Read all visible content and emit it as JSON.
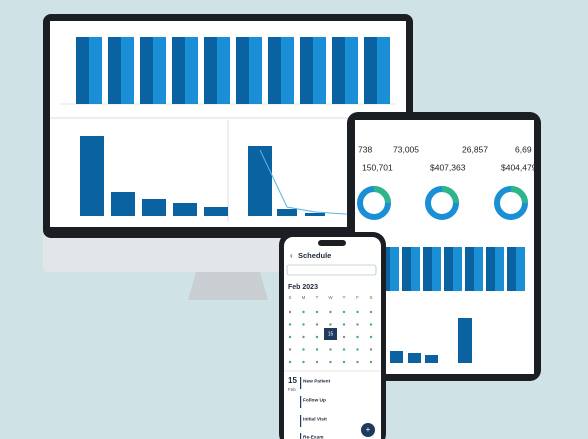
{
  "phone": {
    "title": "Schedule",
    "month": "Feb 2023",
    "weekdays": [
      "S",
      "M",
      "T",
      "W",
      "T",
      "F",
      "S"
    ],
    "selected_day": "15",
    "date_day": "15",
    "date_month": "Feb",
    "appointments": [
      "New Patient",
      "Follow Up",
      "Initial Visit",
      "Re-Exam"
    ]
  },
  "tablet": {
    "kpis": [
      "738",
      "73,005",
      "26,857",
      "6,69",
      "150,701",
      "$407,363",
      "$404,479"
    ]
  }
}
